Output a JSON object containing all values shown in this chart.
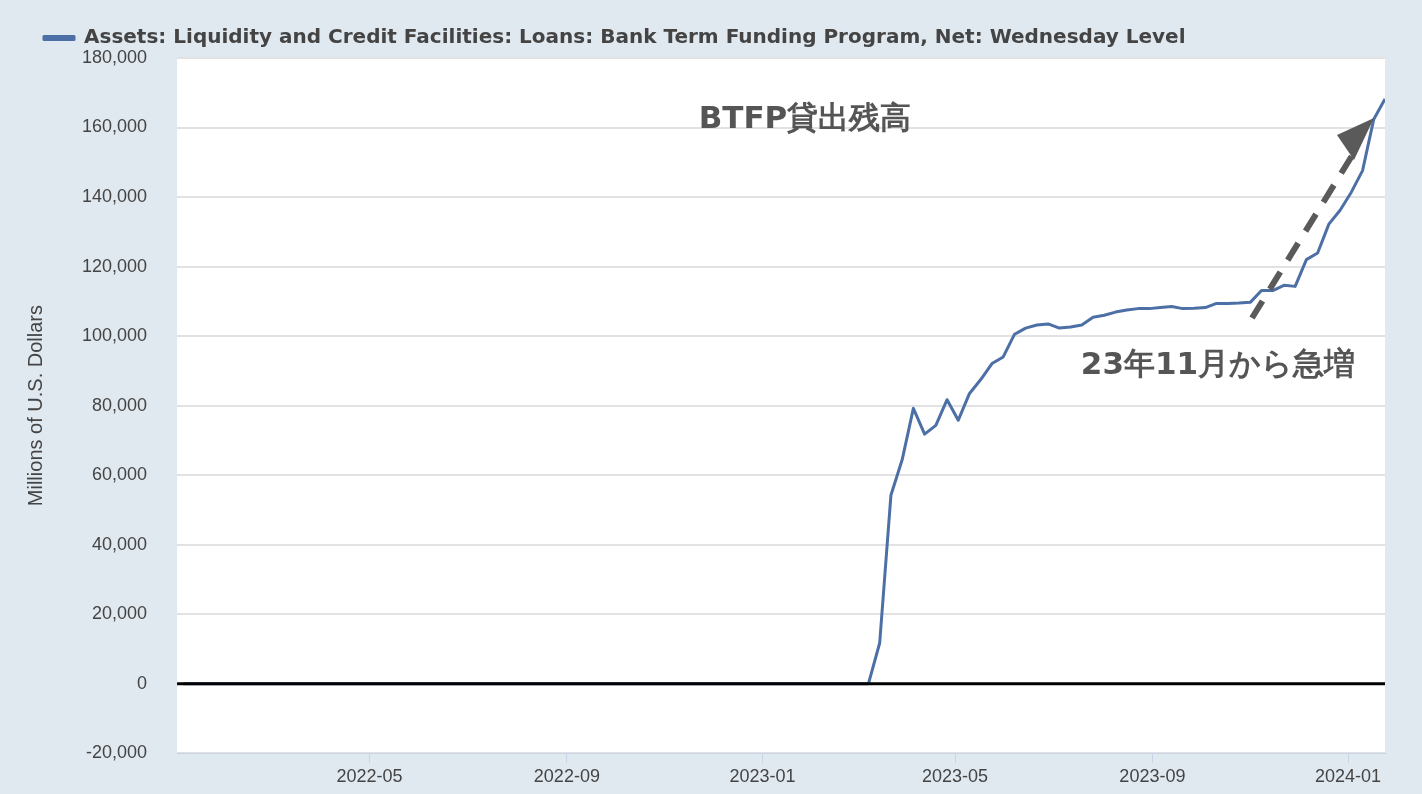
{
  "chart_data": {
    "type": "line",
    "ylabel": "Millions of U.S. Dollars",
    "annotations": [
      "BTFP貸出残高",
      "23年11月から急増"
    ],
    "xlim": [
      "2022-01-01",
      "2024-01-24"
    ],
    "xticks": [
      "2022-05",
      "2022-09",
      "2023-01",
      "2023-05",
      "2023-09",
      "2024-01"
    ],
    "ylim": [
      -20000,
      180000
    ],
    "yticks": [
      {
        "value": -20000,
        "label": "-20,000"
      },
      0,
      {
        "value": 20000,
        "label": "20,000"
      },
      {
        "value": 40000,
        "label": "40,000"
      },
      {
        "value": 60000,
        "label": "60,000"
      },
      {
        "value": 80000,
        "label": "80,000"
      },
      {
        "value": 100000,
        "label": "100,000"
      },
      {
        "value": 120000,
        "label": "120,000"
      },
      {
        "value": 140000,
        "label": "140,000"
      },
      {
        "value": 160000,
        "label": "160,000"
      },
      {
        "value": 180000,
        "label": "180,000"
      }
    ],
    "grid": "y",
    "legend": "top left",
    "marker": "none",
    "line_style": "solid",
    "ref_lines": [
      {
        "axis": "y",
        "value": 0,
        "color": "#000000"
      }
    ],
    "series": [
      {
        "name": "Assets: Liquidity and Credit Facilities: Loans: Bank Term Funding Program, Net: Wednesday Level",
        "color": "#4c6fa5",
        "x": [
          "2022-01-05",
          "2023-03-01",
          "2023-03-08",
          "2023-03-15",
          "2023-03-22",
          "2023-03-29",
          "2023-04-05",
          "2023-04-12",
          "2023-04-19",
          "2023-04-26",
          "2023-05-03",
          "2023-05-10",
          "2023-05-17",
          "2023-05-24",
          "2023-05-31",
          "2023-06-07",
          "2023-06-14",
          "2023-06-21",
          "2023-06-28",
          "2023-07-05",
          "2023-07-12",
          "2023-07-19",
          "2023-07-26",
          "2023-08-02",
          "2023-08-09",
          "2023-08-16",
          "2023-08-23",
          "2023-08-30",
          "2023-09-06",
          "2023-09-13",
          "2023-09-20",
          "2023-09-27",
          "2023-10-04",
          "2023-10-11",
          "2023-10-18",
          "2023-10-25",
          "2023-11-01",
          "2023-11-08",
          "2023-11-15",
          "2023-11-22",
          "2023-11-29",
          "2023-12-06",
          "2023-12-13",
          "2023-12-20",
          "2023-12-27",
          "2024-01-03",
          "2024-01-10",
          "2024-01-17",
          "2024-01-24"
        ],
        "values": [
          0,
          0,
          0,
          11700,
          54200,
          64400,
          79200,
          71800,
          74300,
          81700,
          75800,
          83500,
          87500,
          92100,
          94000,
          100500,
          102300,
          103200,
          103500,
          102300,
          102600,
          103200,
          105400,
          106000,
          106900,
          107500,
          107900,
          107900,
          108200,
          108500,
          107900,
          108000,
          108200,
          109400,
          109400,
          109500,
          109700,
          113100,
          113100,
          114600,
          114300,
          122000,
          123900,
          132200,
          136200,
          141400,
          147600,
          162400,
          168200
        ]
      }
    ]
  }
}
